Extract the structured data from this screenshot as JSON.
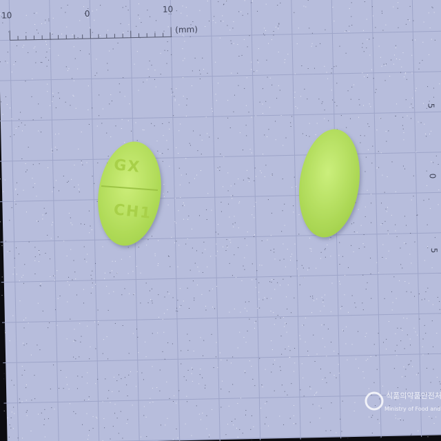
{
  "ruler": {
    "top_labels": [
      "10",
      "0",
      "10"
    ],
    "unit": "(mm)",
    "right_labels": [
      "5",
      "0",
      "5"
    ]
  },
  "pill": {
    "imprint_top": "GX",
    "imprint_bottom": "CH1"
  },
  "watermark": {
    "korean": "식품의약품안전처",
    "english": "Ministry of Food and Drug Safety"
  }
}
